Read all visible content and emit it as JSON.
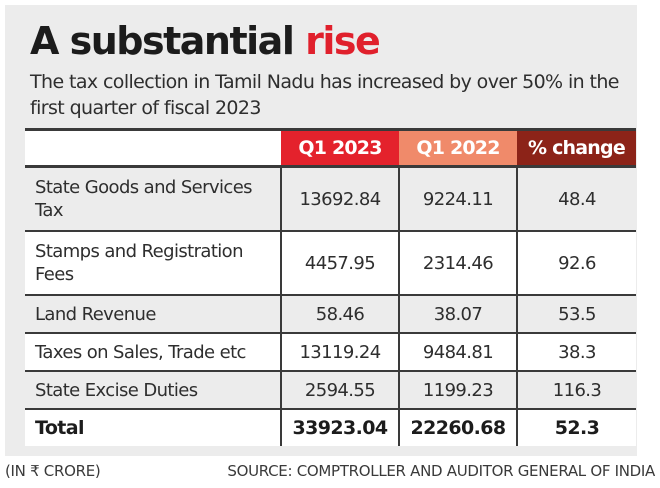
{
  "header": {
    "title_main": "A substantial ",
    "title_accent": "rise",
    "subtitle": "The tax collection in Tamil Nadu has increased by over 50% in the first quarter of fiscal 2023"
  },
  "colors": {
    "accent": "#e0202c",
    "q1_2023_header": "#e4222c",
    "q1_2022_header": "#f08a6a",
    "pct_change_header": "#8c2318",
    "panel_background": "#ececec"
  },
  "footer": {
    "unit": "(IN ₹ CRORE)",
    "source": "SOURCE: COMPTROLLER AND AUDITOR GENERAL OF INDIA"
  },
  "chart_data": {
    "type": "table",
    "title": "A substantial rise",
    "subtitle": "The tax collection in Tamil Nadu has increased by over 50% in the first quarter of fiscal 2023",
    "unit": "₹ crore",
    "columns": [
      "",
      "Q1 2023",
      "Q1 2022",
      "% change"
    ],
    "rows": [
      {
        "label": "State Goods and Services Tax",
        "q1_2023": "13692.84",
        "q1_2022": "9224.11",
        "pct_change": "48.4"
      },
      {
        "label": "Stamps and Registration Fees",
        "q1_2023": "4457.95",
        "q1_2022": "2314.46",
        "pct_change": "92.6"
      },
      {
        "label": "Land Revenue",
        "q1_2023": "58.46",
        "q1_2022": "38.07",
        "pct_change": "53.5"
      },
      {
        "label": "Taxes on Sales, Trade etc",
        "q1_2023": "13119.24",
        "q1_2022": "9484.81",
        "pct_change": "38.3"
      },
      {
        "label": "State Excise Duties",
        "q1_2023": "2594.55",
        "q1_2022": "1199.23",
        "pct_change": "116.3"
      }
    ],
    "total": {
      "label": "Total",
      "q1_2023": "33923.04",
      "q1_2022": "22260.68",
      "pct_change": "52.3"
    },
    "source": "Comptroller and Auditor General of India"
  }
}
